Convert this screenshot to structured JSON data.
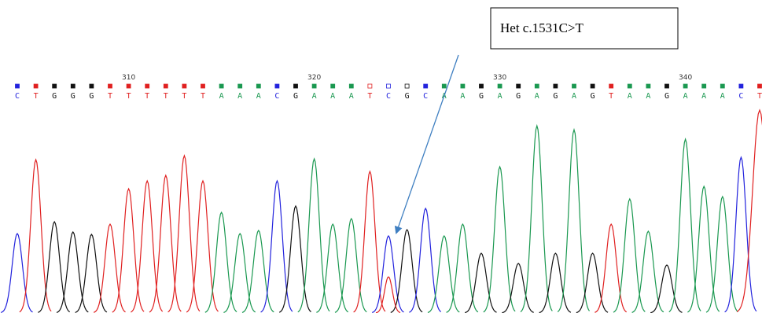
{
  "annotation": "Het c.1531C>T",
  "ruler": [
    "310",
    "320",
    "330",
    "340"
  ],
  "bases": [
    "C",
    "T",
    "G",
    "G",
    "G",
    "T",
    "T",
    "T",
    "T",
    "T",
    "T",
    "A",
    "A",
    "A",
    "C",
    "G",
    "A",
    "A",
    "A",
    "T",
    "C",
    "G",
    "C",
    "A",
    "A",
    "G",
    "A",
    "G",
    "A",
    "G",
    "A",
    "G",
    "T",
    "A",
    "A",
    "G",
    "A",
    "A",
    "A",
    "C",
    "T"
  ]
}
